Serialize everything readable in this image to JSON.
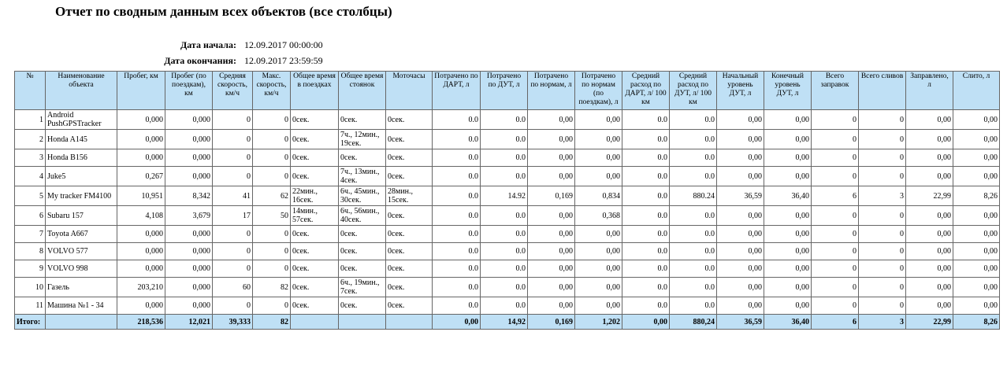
{
  "header": {
    "title": "Отчет по сводным данным всех объектов (все столбцы)",
    "start_label": "Дата начала:",
    "start_value": "12.09.2017 00:00:00",
    "end_label": "Дата окончания:",
    "end_value": "12.09.2017 23:59:59"
  },
  "table": {
    "columns": [
      "№",
      "Наименование объекта",
      "Пробег, км",
      "Пробег (по поездкам), км",
      "Средняя скорость, км/ч",
      "Макс. скорость, км/ч",
      "Общее время в поездках",
      "Общее время стоянок",
      "Моточасы",
      "Потрачено по ДАРТ, л",
      "Потрачено по ДУТ, л",
      "Потрачено по нормам, л",
      "Потрачено по нормам (по поездкам), л",
      "Средний расход по ДАРТ, л/ 100 км",
      "Средний расход по ДУТ, л/ 100 км",
      "Начальный уровень ДУТ, л",
      "Конечный уровень ДУТ, л",
      "Всего заправок",
      "Всего сливов",
      "Заправлено, л",
      "Слито, л"
    ],
    "rows": [
      [
        "1",
        "Android PushGPSTracker",
        "0,000",
        "0,000",
        "0",
        "0",
        "0сек.",
        "0сек.",
        "0сек.",
        "0.0",
        "0.0",
        "0,00",
        "0,00",
        "0.0",
        "0.0",
        "0,00",
        "0,00",
        "0",
        "0",
        "0,00",
        "0,00"
      ],
      [
        "2",
        "Honda A145",
        "0,000",
        "0,000",
        "0",
        "0",
        "0сек.",
        "7ч., 12мин., 19сек.",
        "0сек.",
        "0.0",
        "0.0",
        "0,00",
        "0,00",
        "0.0",
        "0.0",
        "0,00",
        "0,00",
        "0",
        "0",
        "0,00",
        "0,00"
      ],
      [
        "3",
        "Honda B156",
        "0,000",
        "0,000",
        "0",
        "0",
        "0сек.",
        "0сек.",
        "0сек.",
        "0.0",
        "0.0",
        "0,00",
        "0,00",
        "0.0",
        "0.0",
        "0,00",
        "0,00",
        "0",
        "0",
        "0,00",
        "0,00"
      ],
      [
        "4",
        "Juke5",
        "0,267",
        "0,000",
        "0",
        "0",
        "0сек.",
        "7ч., 13мин., 4сек.",
        "0сек.",
        "0.0",
        "0.0",
        "0,00",
        "0,00",
        "0.0",
        "0.0",
        "0,00",
        "0,00",
        "0",
        "0",
        "0,00",
        "0,00"
      ],
      [
        "5",
        "My tracker FM4100",
        "10,951",
        "8,342",
        "41",
        "62",
        "22мин., 16сек.",
        "6ч., 45мин., 30сек.",
        "28мин., 15сек.",
        "0.0",
        "14.92",
        "0,169",
        "0,834",
        "0.0",
        "880.24",
        "36,59",
        "36,40",
        "6",
        "3",
        "22,99",
        "8,26"
      ],
      [
        "6",
        "Subaru 157",
        "4,108",
        "3,679",
        "17",
        "50",
        "14мин., 57сек.",
        "6ч., 56мин., 40сек.",
        "0сек.",
        "0.0",
        "0.0",
        "0,00",
        "0,368",
        "0.0",
        "0.0",
        "0,00",
        "0,00",
        "0",
        "0",
        "0,00",
        "0,00"
      ],
      [
        "7",
        "Toyota A667",
        "0,000",
        "0,000",
        "0",
        "0",
        "0сек.",
        "0сек.",
        "0сек.",
        "0.0",
        "0.0",
        "0,00",
        "0,00",
        "0.0",
        "0.0",
        "0,00",
        "0,00",
        "0",
        "0",
        "0,00",
        "0,00"
      ],
      [
        "8",
        "VOLVO 577",
        "0,000",
        "0,000",
        "0",
        "0",
        "0сек.",
        "0сек.",
        "0сек.",
        "0.0",
        "0.0",
        "0,00",
        "0,00",
        "0.0",
        "0.0",
        "0,00",
        "0,00",
        "0",
        "0",
        "0,00",
        "0,00"
      ],
      [
        "9",
        "VOLVO 998",
        "0,000",
        "0,000",
        "0",
        "0",
        "0сек.",
        "0сек.",
        "0сек.",
        "0.0",
        "0.0",
        "0,00",
        "0,00",
        "0.0",
        "0.0",
        "0,00",
        "0,00",
        "0",
        "0",
        "0,00",
        "0,00"
      ],
      [
        "10",
        "Газель",
        "203,210",
        "0,000",
        "60",
        "82",
        "0сек.",
        "6ч., 19мин., 7сек.",
        "0сек.",
        "0.0",
        "0.0",
        "0,00",
        "0,00",
        "0.0",
        "0.0",
        "0,00",
        "0,00",
        "0",
        "0",
        "0,00",
        "0,00"
      ],
      [
        "11",
        "Машина №1 - 34",
        "0,000",
        "0,000",
        "0",
        "0",
        "0сек.",
        "0сек.",
        "0сек.",
        "0.0",
        "0.0",
        "0,00",
        "0,00",
        "0.0",
        "0.0",
        "0,00",
        "0,00",
        "0",
        "0",
        "0,00",
        "0,00"
      ]
    ],
    "total": [
      "Итого:",
      null,
      "218,536",
      "12,021",
      "39,333",
      "82",
      null,
      null,
      null,
      "0,00",
      "14,92",
      "0,169",
      "1,202",
      "0,00",
      "880,24",
      "36,59",
      "36,40",
      "6",
      "3",
      "22,99",
      "8,26"
    ]
  }
}
